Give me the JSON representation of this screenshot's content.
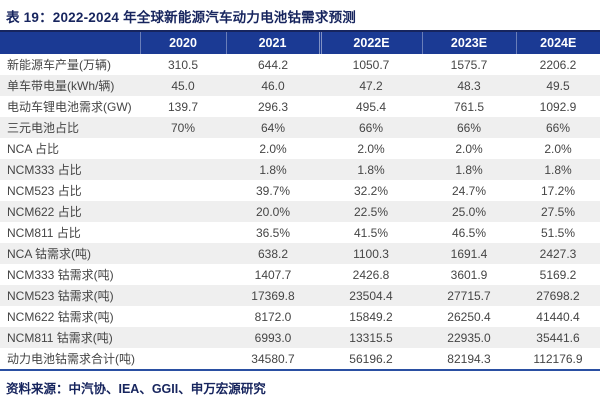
{
  "title": "表 19：2022-2024 年全球新能源汽车动力电池钴需求预测",
  "source_note": "资料来源：中汽协、IEA、GGII、申万宏源研究",
  "colors": {
    "title_navy": "#17255e",
    "header_blue": "#1b3a94",
    "stripe_gray": "#efefef",
    "bottom_line": "#2a4fa2",
    "body_text": "#454545"
  },
  "table": {
    "columns": [
      "",
      "2020",
      "2021",
      "2022E",
      "2023E",
      "2024E"
    ],
    "rows": [
      {
        "label": "新能源车产量(万辆)",
        "values": [
          "310.5",
          "644.2",
          "1050.7",
          "1575.7",
          "2206.2"
        ]
      },
      {
        "label": "单车带电量(kWh/辆)",
        "values": [
          "45.0",
          "46.0",
          "47.2",
          "48.3",
          "49.5"
        ]
      },
      {
        "label": "电动车锂电池需求(GW)",
        "values": [
          "139.7",
          "296.3",
          "495.4",
          "761.5",
          "1092.9"
        ]
      },
      {
        "label": "三元电池占比",
        "values": [
          "70%",
          "64%",
          "66%",
          "66%",
          "66%"
        ]
      },
      {
        "label": "NCA 占比",
        "values": [
          "",
          "2.0%",
          "2.0%",
          "2.0%",
          "2.0%"
        ]
      },
      {
        "label": "NCM333 占比",
        "values": [
          "",
          "1.8%",
          "1.8%",
          "1.8%",
          "1.8%"
        ]
      },
      {
        "label": "NCM523 占比",
        "values": [
          "",
          "39.7%",
          "32.2%",
          "24.7%",
          "17.2%"
        ]
      },
      {
        "label": "NCM622 占比",
        "values": [
          "",
          "20.0%",
          "22.5%",
          "25.0%",
          "27.5%"
        ]
      },
      {
        "label": "NCM811 占比",
        "values": [
          "",
          "36.5%",
          "41.5%",
          "46.5%",
          "51.5%"
        ]
      },
      {
        "label": "NCA 钴需求(吨)",
        "values": [
          "",
          "638.2",
          "1100.3",
          "1691.4",
          "2427.3"
        ]
      },
      {
        "label": "NCM333 钴需求(吨)",
        "values": [
          "",
          "1407.7",
          "2426.8",
          "3601.9",
          "5169.2"
        ]
      },
      {
        "label": "NCM523 钴需求(吨)",
        "values": [
          "",
          "17369.8",
          "23504.4",
          "27715.7",
          "27698.2"
        ]
      },
      {
        "label": "NCM622 钴需求(吨)",
        "values": [
          "",
          "8172.0",
          "15849.2",
          "26250.4",
          "41440.4"
        ]
      },
      {
        "label": "NCM811 钴需求(吨)",
        "values": [
          "",
          "6993.0",
          "13315.5",
          "22935.0",
          "35441.6"
        ]
      },
      {
        "label": "动力电池钴需求合计(吨)",
        "values": [
          "",
          "34580.7",
          "56196.2",
          "82194.3",
          "112176.9"
        ]
      }
    ]
  }
}
